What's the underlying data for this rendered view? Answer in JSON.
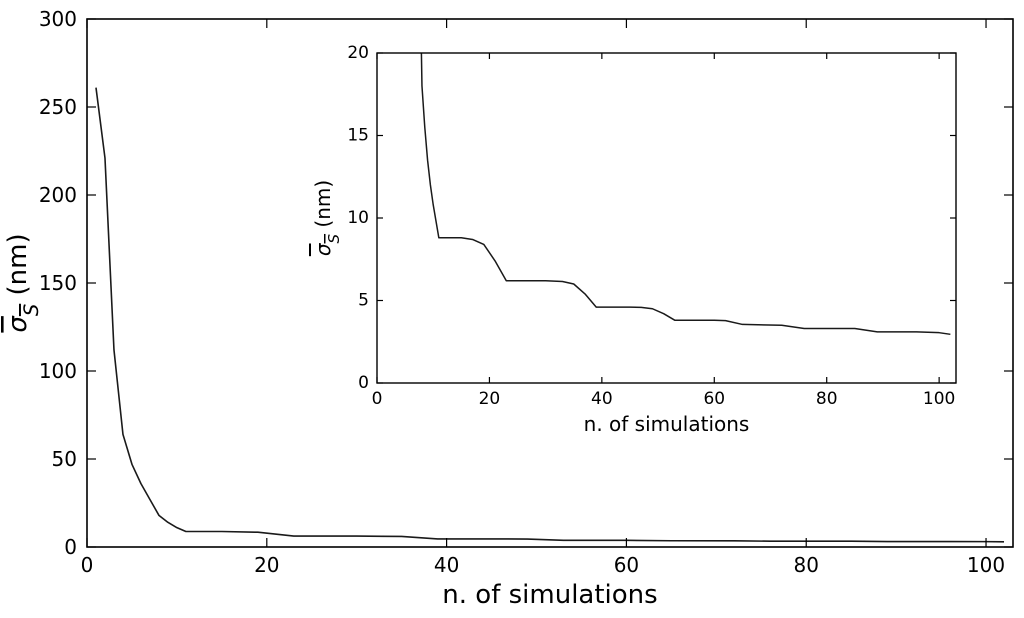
{
  "chart_data": [
    {
      "id": "main",
      "type": "line",
      "title": "",
      "xlabel": "n. of simulations",
      "ylabel": "σ_S (nm)",
      "ylabel_main": "σ",
      "ylabel_sub": "S",
      "ylabel_unit": " (nm)",
      "xlim": [
        0,
        103
      ],
      "ylim": [
        0,
        300
      ],
      "xticks": [
        0,
        20,
        40,
        60,
        80,
        100
      ],
      "yticks": [
        0,
        50,
        100,
        150,
        200,
        250,
        300
      ],
      "grid": false,
      "series": [
        {
          "x": [
            1,
            2,
            3,
            4,
            5,
            6,
            7,
            8,
            9,
            10,
            11,
            15,
            19,
            23,
            30,
            35,
            39,
            45,
            49,
            53,
            60,
            65,
            72,
            76,
            85,
            89,
            96,
            100,
            102
          ],
          "y": [
            261,
            221,
            112,
            64,
            47,
            36,
            27,
            18,
            14,
            11,
            8.8,
            8.8,
            8.4,
            6.2,
            6.2,
            6.0,
            4.6,
            4.6,
            4.5,
            3.8,
            3.8,
            3.55,
            3.5,
            3.3,
            3.3,
            3.1,
            3.1,
            3.05,
            2.95
          ]
        }
      ]
    },
    {
      "id": "inset",
      "type": "line",
      "title": "",
      "xlabel": "n. of simulations",
      "ylabel": "σ_S (nm)",
      "ylabel_main": "σ",
      "ylabel_sub": "S",
      "ylabel_unit": " (nm)",
      "xlim": [
        0,
        103
      ],
      "ylim": [
        0,
        20
      ],
      "xticks": [
        0,
        20,
        40,
        60,
        80,
        100
      ],
      "yticks": [
        0,
        5,
        10,
        15,
        20
      ],
      "grid": false,
      "series": [
        {
          "x": [
            7.9,
            8,
            8.5,
            9,
            9.5,
            10,
            10.5,
            11,
            15,
            17,
            19,
            21,
            23,
            27,
            30,
            33,
            35,
            37,
            39,
            45,
            47,
            49,
            51,
            53,
            60,
            62,
            65,
            72,
            76,
            85,
            89,
            96,
            100,
            102
          ],
          "y": [
            20,
            18,
            15.5,
            13.5,
            12,
            10.8,
            9.8,
            8.8,
            8.8,
            8.7,
            8.4,
            7.4,
            6.2,
            6.2,
            6.2,
            6.15,
            6.0,
            5.4,
            4.6,
            4.6,
            4.58,
            4.5,
            4.2,
            3.8,
            3.8,
            3.78,
            3.55,
            3.5,
            3.3,
            3.3,
            3.1,
            3.1,
            3.05,
            2.95
          ]
        }
      ]
    }
  ]
}
